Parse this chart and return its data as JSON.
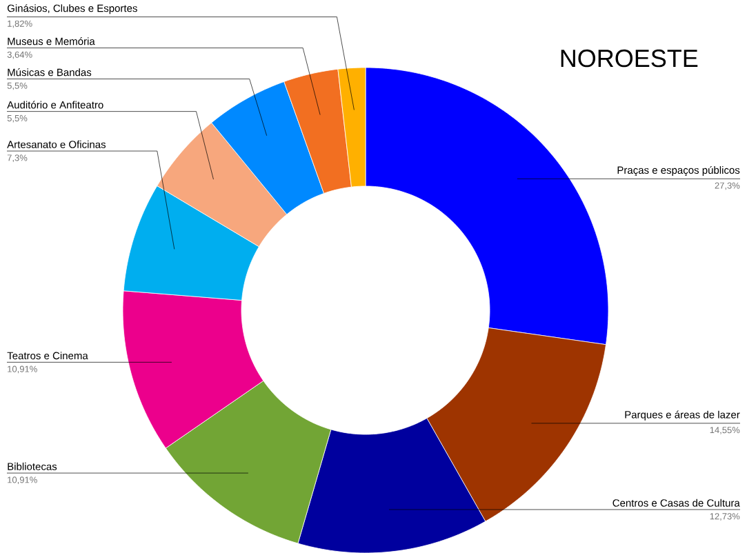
{
  "chart_data": {
    "type": "donut",
    "title": "NOROESTE",
    "categories": [
      "Praças e espaços públicos",
      "Parques e áreas de lazer",
      "Centros e Casas de Cultura",
      "Bibliotecas",
      "Teatros e Cinema",
      "Artesanato e Oficinas",
      "Auditório e Anfiteatro",
      "Músicas e Bandas",
      "Museus e Memória",
      "Ginásios, Clubes e Esportes"
    ],
    "values": [
      27.3,
      14.55,
      12.73,
      10.91,
      10.91,
      7.3,
      5.5,
      5.5,
      3.64,
      1.82
    ],
    "value_labels": [
      "27,3%",
      "14,55%",
      "12,73%",
      "10,91%",
      "10,91%",
      "7,3%",
      "5,5%",
      "5,5%",
      "3,64%",
      "1,82%"
    ],
    "colors": [
      "#0000ff",
      "#9e3400",
      "#00009e",
      "#72a535",
      "#ec008c",
      "#00aeef",
      "#f7a77d",
      "#0089ff",
      "#f26f21",
      "#ffb000"
    ]
  }
}
